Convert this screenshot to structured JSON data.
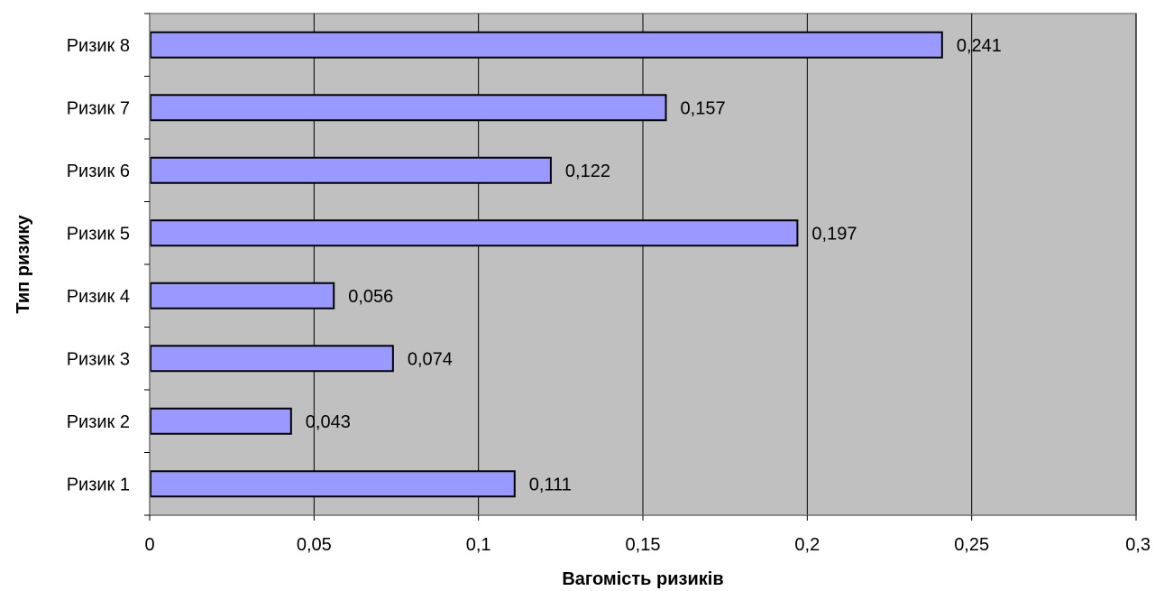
{
  "chart_data": {
    "type": "bar",
    "orientation": "horizontal",
    "title": "",
    "xlabel": "Вагомість ризиків",
    "ylabel": "Тип ризику",
    "categories": [
      "Ризик 1",
      "Ризик 2",
      "Ризик 3",
      "Ризик 4",
      "Ризик 5",
      "Ризик 6",
      "Ризик 7",
      "Ризик 8"
    ],
    "values": [
      0.111,
      0.043,
      0.074,
      0.056,
      0.197,
      0.122,
      0.157,
      0.241
    ],
    "value_labels": [
      "0,111",
      "0,043",
      "0,074",
      "0,056",
      "0,197",
      "0,122",
      "0,157",
      "0,241"
    ],
    "xlim": [
      0,
      0.3
    ],
    "x_ticks": [
      0,
      0.05,
      0.1,
      0.15,
      0.2,
      0.25,
      0.3
    ],
    "x_tick_labels": [
      "0",
      "0,05",
      "0,1",
      "0,15",
      "0,2",
      "0,25",
      "0,3"
    ],
    "grid": "vertical",
    "legend": "none",
    "colors": {
      "bar_fill": "#9999ff",
      "bar_stroke": "#000000",
      "plot_background": "#c0c0c0",
      "gridline": "#000000",
      "axis": "#808080"
    }
  }
}
